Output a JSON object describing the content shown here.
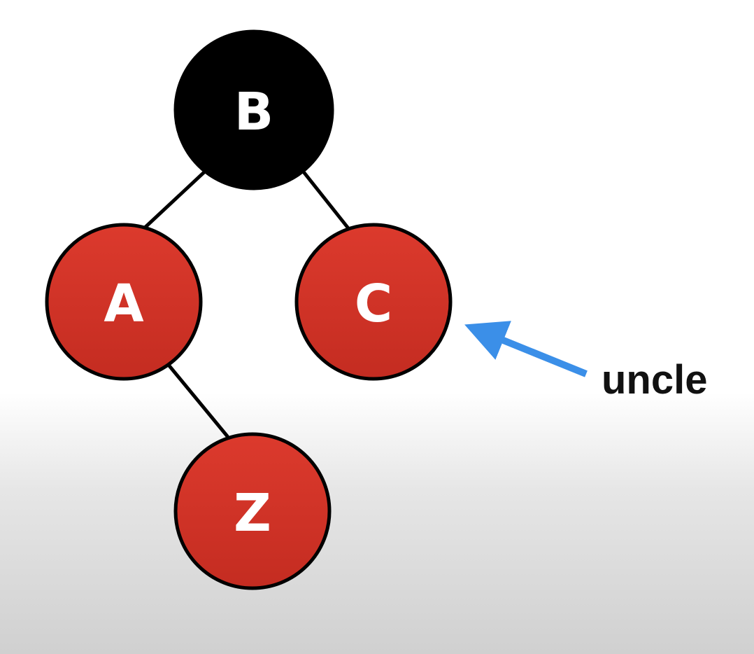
{
  "tree": {
    "nodes": [
      {
        "id": "B",
        "label": "B",
        "color": "black"
      },
      {
        "id": "A",
        "label": "A",
        "color": "red"
      },
      {
        "id": "C",
        "label": "C",
        "color": "red"
      },
      {
        "id": "Z",
        "label": "Z",
        "color": "red"
      }
    ],
    "edges": [
      {
        "from": "B",
        "to": "A"
      },
      {
        "from": "B",
        "to": "C"
      },
      {
        "from": "A",
        "to": "Z"
      }
    ]
  },
  "annotation": {
    "label": "uncle",
    "target": "C",
    "arrow_color": "#3b8fe8"
  },
  "colors": {
    "black_node": "#000000",
    "red_node": "#d93a2e",
    "red_node_dark": "#b8281f",
    "label_on_dark": "#ffffff",
    "edge": "#000000"
  }
}
